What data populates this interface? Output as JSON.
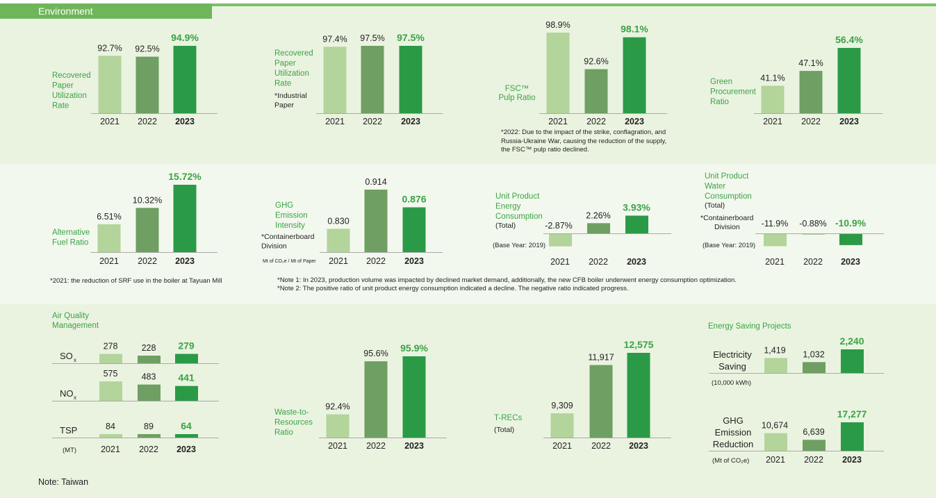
{
  "header": {
    "title": "Environment"
  },
  "colors": {
    "c2021": "#b3d49a",
    "c2022": "#6f9f62",
    "c2023": "#2a9a46",
    "label_green": "#3aa346",
    "axis": "#aaaaaa"
  },
  "years": [
    "2021",
    "2022",
    "2023"
  ],
  "chart_data": [
    {
      "id": "rpu1",
      "type": "bar",
      "label_lines": [
        "Recovered",
        "Paper",
        "Utilization",
        "Rate"
      ],
      "categories": [
        "2021",
        "2022",
        "2023"
      ],
      "values": [
        92.7,
        92.5,
        94.9
      ],
      "value_labels": [
        "92.7%",
        "92.5%",
        "94.9%"
      ]
    },
    {
      "id": "rpu2",
      "type": "bar",
      "label_lines": [
        "Recovered",
        "Paper",
        "Utilization",
        "Rate"
      ],
      "sub_lines": [
        "*Industrial",
        "  Paper"
      ],
      "categories": [
        "2021",
        "2022",
        "2023"
      ],
      "values": [
        97.4,
        97.5,
        97.5
      ],
      "value_labels": [
        "97.4%",
        "97.5%",
        "97.5%"
      ]
    },
    {
      "id": "fsc",
      "type": "bar",
      "label_lines": [
        "FSC™",
        "Pulp Ratio"
      ],
      "categories": [
        "2021",
        "2022",
        "2023"
      ],
      "values": [
        98.9,
        92.6,
        98.1
      ],
      "value_labels": [
        "98.9%",
        "92.6%",
        "98.1%"
      ]
    },
    {
      "id": "green",
      "type": "bar",
      "label_lines": [
        "Green",
        "Procurement",
        "Ratio"
      ],
      "categories": [
        "2021",
        "2022",
        "2023"
      ],
      "values": [
        41.1,
        47.1,
        56.4
      ],
      "value_labels": [
        "41.1%",
        "47.1%",
        "56.4%"
      ]
    },
    {
      "id": "altfuel",
      "type": "bar",
      "label_lines": [
        "Alternative",
        "Fuel Ratio"
      ],
      "categories": [
        "2021",
        "2022",
        "2023"
      ],
      "values": [
        6.51,
        10.32,
        15.72
      ],
      "value_labels": [
        "6.51%",
        "10.32%",
        "15.72%"
      ]
    },
    {
      "id": "ghgint",
      "type": "bar",
      "label_lines": [
        "GHG",
        "Emission",
        "Intensity"
      ],
      "sub_lines": [
        "*Containerboard",
        "  Division"
      ],
      "unit": "Mt of CO₂e / Mt of Paper",
      "categories": [
        "2021",
        "2022",
        "2023"
      ],
      "values": [
        0.83,
        0.914,
        0.876
      ],
      "value_labels": [
        "0.830",
        "0.914",
        "0.876"
      ]
    },
    {
      "id": "energy",
      "type": "bar",
      "label_lines": [
        "Unit Product",
        "Energy",
        "Consumption"
      ],
      "sub_lines": [
        "(Total)"
      ],
      "base_year": "(Base Year: 2019)",
      "categories": [
        "2021",
        "2022",
        "2023"
      ],
      "values": [
        -2.87,
        2.26,
        3.93
      ],
      "value_labels": [
        "-2.87%",
        "2.26%",
        "3.93%"
      ]
    },
    {
      "id": "water",
      "type": "bar",
      "label_lines": [
        "Unit Product",
        "Water",
        "Consumption"
      ],
      "sub_lines": [
        "(Total)",
        "*Containerboard",
        "  Division"
      ],
      "base_year": "(Base Year: 2019)",
      "categories": [
        "2021",
        "2022",
        "2023"
      ],
      "values": [
        -11.9,
        -0.88,
        -10.9
      ],
      "value_labels": [
        "-11.9%",
        "-0.88%",
        "-10.9%"
      ]
    },
    {
      "id": "air",
      "type": "bar",
      "title_lines": [
        "Air Quality",
        "Management"
      ],
      "unit": "(MT)",
      "categories": [
        "2021",
        "2022",
        "2023"
      ],
      "series": [
        {
          "name": "SOₓ",
          "values": [
            278,
            228,
            279
          ],
          "value_labels": [
            "278",
            "228",
            "279"
          ]
        },
        {
          "name": "NOₓ",
          "values": [
            575,
            483,
            441
          ],
          "value_labels": [
            "575",
            "483",
            "441"
          ]
        },
        {
          "name": "TSP",
          "values": [
            84,
            89,
            64
          ],
          "value_labels": [
            "84",
            "89",
            "64"
          ]
        }
      ]
    },
    {
      "id": "waste",
      "type": "bar",
      "label_lines": [
        "Waste-to-",
        "Resources",
        "Ratio"
      ],
      "categories": [
        "2021",
        "2022",
        "2023"
      ],
      "values": [
        92.4,
        95.6,
        95.9
      ],
      "value_labels": [
        "92.4%",
        "95.6%",
        "95.9%"
      ]
    },
    {
      "id": "trecs",
      "type": "bar",
      "label_lines": [
        "T-RECs"
      ],
      "sub_lines": [
        "(Total)"
      ],
      "categories": [
        "2021",
        "2022",
        "2023"
      ],
      "values": [
        9309,
        11917,
        12575
      ],
      "value_labels": [
        "9,309",
        "11,917",
        "12,575"
      ]
    },
    {
      "id": "saving",
      "type": "bar",
      "title_lines": [
        "Energy Saving Projects"
      ],
      "categories": [
        "2021",
        "2022",
        "2023"
      ],
      "series": [
        {
          "name": "Electricity Saving",
          "unit": "(10,000 kWh)",
          "values": [
            1419,
            1032,
            2240
          ],
          "value_labels": [
            "1,419",
            "1,032",
            "2,240"
          ]
        },
        {
          "name": "GHG Emission Reduction",
          "unit": "(Mt of CO₂e)",
          "values": [
            10674,
            6639,
            17277
          ],
          "value_labels": [
            "10,674",
            "6,639",
            "17,277"
          ]
        }
      ]
    }
  ],
  "notes": {
    "fsc": "*2022: Due to the impact of the strike, conflagration, and\n   Russia-Ukraine War, causing the reduction of the supply,\n   the  FSC™ pulp ratio declined.",
    "srf": "*2021: the reduction of SRF use in the boiler at Tayuan Mill",
    "energy_note1": "*Note 1: In 2023, production volume  was impacted by  declined  market demand, additionally, the new  CFB boiler  underwent energy consumption optimization.",
    "energy_note2": "*Note 2: The positive ratio of unit product energy consumption indicated a decline. The negative ratio indicated progress.",
    "footer": "Note: Taiwan"
  }
}
